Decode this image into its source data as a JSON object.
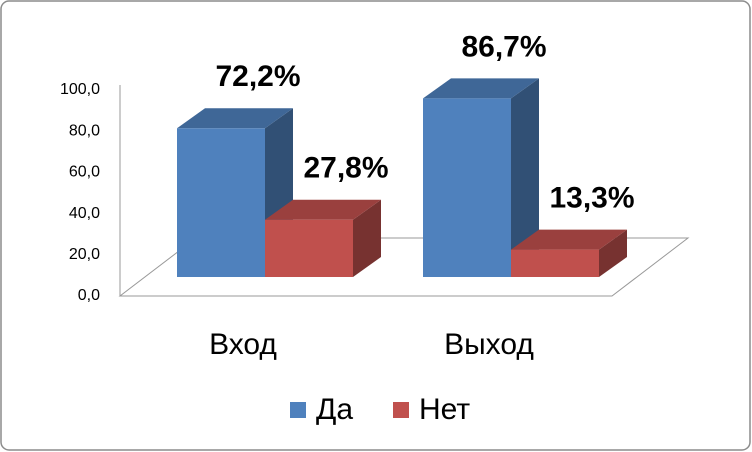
{
  "chart_data": {
    "type": "bar3d",
    "categories": [
      "Вход",
      "Выход"
    ],
    "series": [
      {
        "name": "Да",
        "color": "#4f81bd",
        "values": [
          72.2,
          86.7
        ],
        "value_labels": [
          "72,2%",
          "86,7%"
        ]
      },
      {
        "name": "Нет",
        "color": "#c0504d",
        "values": [
          27.8,
          13.3
        ],
        "value_labels": [
          "27,8%",
          "13,3%"
        ]
      }
    ],
    "ylim": [
      0,
      100
    ],
    "yticks": [
      {
        "value": 0,
        "label": "0,0"
      },
      {
        "value": 20,
        "label": "20,0"
      },
      {
        "value": 40,
        "label": "40,0"
      },
      {
        "value": 60,
        "label": "60,0"
      },
      {
        "value": 80,
        "label": "80,0"
      },
      {
        "value": 100,
        "label": "100,0"
      }
    ],
    "grid": false,
    "legend": "bottom"
  }
}
